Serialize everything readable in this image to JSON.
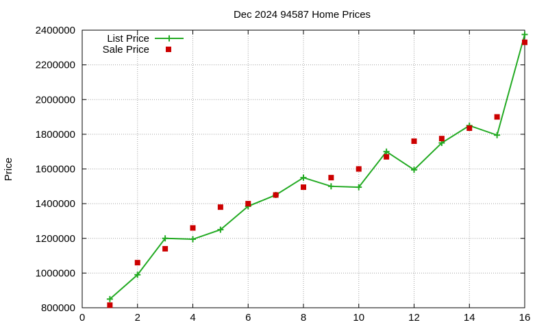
{
  "chart_data": {
    "type": "line",
    "title": "Dec 2024 94587 Home Prices",
    "xlabel": "",
    "ylabel": "Price",
    "xlim": [
      0,
      16
    ],
    "ylim": [
      800000,
      2400000
    ],
    "x_ticks": [
      "0",
      "2",
      "4",
      "6",
      "8",
      "10",
      "12",
      "14",
      "16"
    ],
    "y_ticks": [
      "800000",
      "1000000",
      "1200000",
      "1400000",
      "1600000",
      "1800000",
      "2000000",
      "2200000",
      "2400000"
    ],
    "grid": true,
    "legend_position": "top-left",
    "series": [
      {
        "name": "List Price",
        "style": "line-with-plus-markers",
        "color": "#22aa22",
        "points": [
          [
            1,
            850000
          ],
          [
            2,
            990000
          ],
          [
            3,
            1200000
          ],
          [
            4,
            1195000
          ],
          [
            5,
            1250000
          ],
          [
            6,
            1385000
          ],
          [
            7,
            1450000
          ],
          [
            8,
            1550000
          ],
          [
            9,
            1500000
          ],
          [
            10,
            1495000
          ],
          [
            11,
            1700000
          ],
          [
            12,
            1595000
          ],
          [
            13,
            1750000
          ],
          [
            14,
            1850000
          ],
          [
            15,
            1795000
          ],
          [
            16,
            2375000
          ]
        ]
      },
      {
        "name": "Sale Price",
        "style": "square-markers",
        "color": "#cc0000",
        "points": [
          [
            1,
            815000
          ],
          [
            2,
            1060000
          ],
          [
            3,
            1140000
          ],
          [
            4,
            1260000
          ],
          [
            5,
            1380000
          ],
          [
            6,
            1400000
          ],
          [
            7,
            1450000
          ],
          [
            8,
            1495000
          ],
          [
            9,
            1550000
          ],
          [
            10,
            1600000
          ],
          [
            11,
            1670000
          ],
          [
            12,
            1760000
          ],
          [
            13,
            1775000
          ],
          [
            14,
            1835000
          ],
          [
            15,
            1900000
          ],
          [
            16,
            2330000
          ]
        ]
      }
    ]
  }
}
